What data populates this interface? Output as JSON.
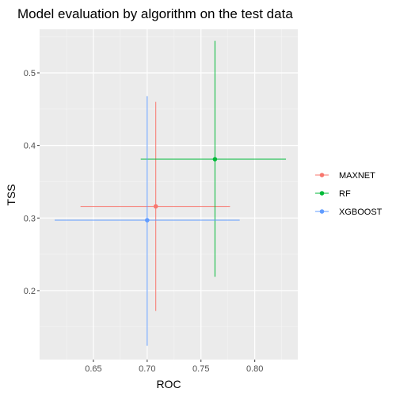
{
  "chart_data": {
    "type": "scatter",
    "title": "Model evaluation by algorithm on the test data",
    "xlabel": "ROC",
    "ylabel": "TSS",
    "xlim": [
      0.6,
      0.84
    ],
    "ylim": [
      0.105,
      0.56
    ],
    "xticks": [
      0.65,
      0.7,
      0.75,
      0.8
    ],
    "xtick_labels": [
      "0.65",
      "0.70",
      "0.75",
      "0.80"
    ],
    "yticks": [
      0.2,
      0.3,
      0.4,
      0.5
    ],
    "ytick_labels": [
      "0.2",
      "0.3",
      "0.4",
      "0.5"
    ],
    "grid": true,
    "legend_position": "right",
    "series": [
      {
        "name": "MAXNET",
        "color": "#F8766D",
        "x": 0.708,
        "y": 0.316,
        "x_range": [
          0.638,
          0.777
        ],
        "y_range": [
          0.172,
          0.46
        ]
      },
      {
        "name": "RF",
        "color": "#00BA38",
        "x": 0.763,
        "y": 0.381,
        "x_range": [
          0.694,
          0.829
        ],
        "y_range": [
          0.219,
          0.544
        ]
      },
      {
        "name": "XGBOOST",
        "color": "#619CFF",
        "x": 0.7,
        "y": 0.297,
        "x_range": [
          0.614,
          0.786
        ],
        "y_range": [
          0.124,
          0.468
        ]
      }
    ]
  }
}
